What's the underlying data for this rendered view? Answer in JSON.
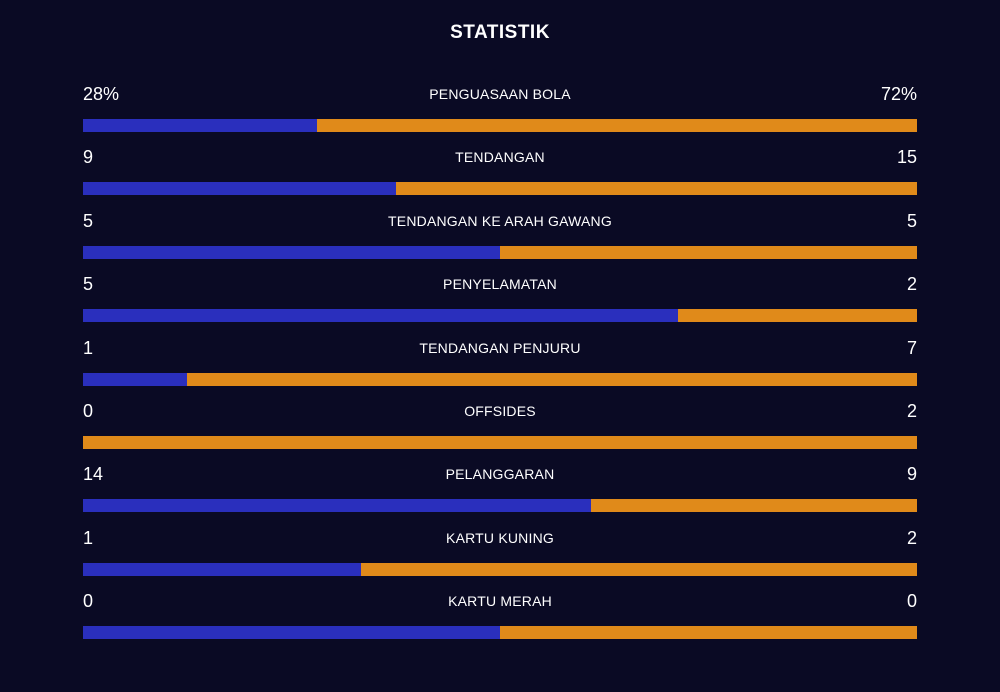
{
  "title": "STATISTIK",
  "colors": {
    "background": "#0a0a24",
    "home": "#2a2fbd",
    "away": "#e08a1a"
  },
  "stats": [
    {
      "label": "PENGUASAAN BOLA",
      "home": "28%",
      "away": "72%",
      "home_share": 0.28
    },
    {
      "label": "TENDANGAN",
      "home": "9",
      "away": "15",
      "home_share": 0.375
    },
    {
      "label": "TENDANGAN KE ARAH GAWANG",
      "home": "5",
      "away": "5",
      "home_share": 0.5
    },
    {
      "label": "PENYELAMATAN",
      "home": "5",
      "away": "2",
      "home_share": 0.714
    },
    {
      "label": "TENDANGAN PENJURU",
      "home": "1",
      "away": "7",
      "home_share": 0.125
    },
    {
      "label": "OFFSIDES",
      "home": "0",
      "away": "2",
      "home_share": 0
    },
    {
      "label": "PELANGGARAN",
      "home": "14",
      "away": "9",
      "home_share": 0.609
    },
    {
      "label": "KARTU KUNING",
      "home": "1",
      "away": "2",
      "home_share": 0.333
    },
    {
      "label": "KARTU MERAH",
      "home": "0",
      "away": "0",
      "home_share": 0.5
    }
  ]
}
